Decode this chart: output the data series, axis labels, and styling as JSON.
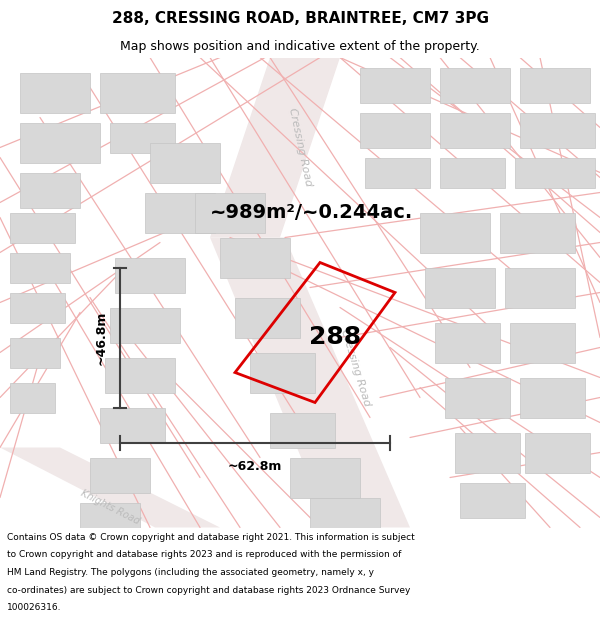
{
  "title": "288, CRESSING ROAD, BRAINTREE, CM7 3PG",
  "subtitle": "Map shows position and indicative extent of the property.",
  "footer_lines": [
    "Contains OS data © Crown copyright and database right 2021. This information is subject",
    "to Crown copyright and database rights 2023 and is reproduced with the permission of",
    "HM Land Registry. The polygons (including the associated geometry, namely x, y",
    "co-ordinates) are subject to Crown copyright and database rights 2023 Ordnance Survey",
    "100026316."
  ],
  "area_label": "~989m²/~0.244ac.",
  "property_label": "288",
  "dim_width": "~62.8m",
  "dim_height": "~46.8m",
  "map_bg": "#ffffff",
  "road_fill": "#f5eded",
  "street_color": "#f0b0b0",
  "block_color": "#d8d8d8",
  "block_edge": "#c4c4c4",
  "prop_color": "#dd0000",
  "dim_color": "#404040",
  "label_color": "#bbbbbb",
  "title_fontsize": 11,
  "subtitle_fontsize": 9,
  "area_fontsize": 14,
  "prop_num_fontsize": 18,
  "dim_fontsize": 9,
  "road_label_fontsize": 8,
  "footer_fontsize": 6.5
}
